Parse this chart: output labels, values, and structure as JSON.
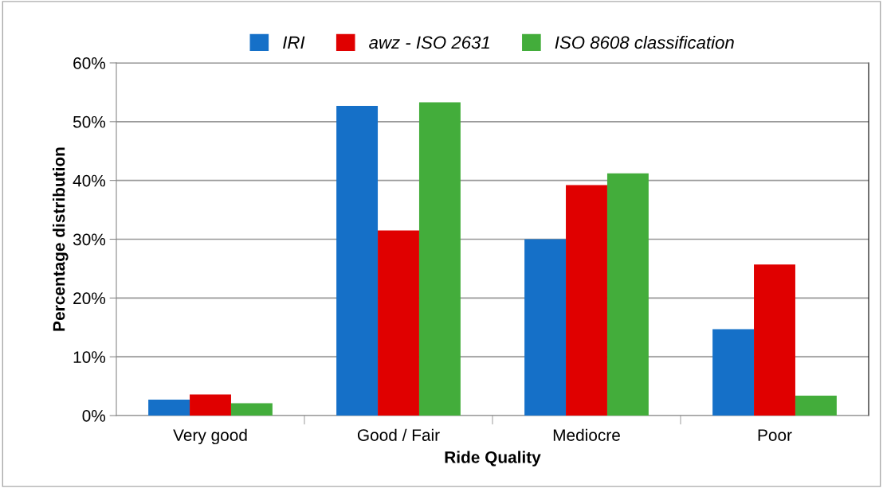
{
  "chart_data": {
    "type": "bar",
    "xlabel": "Ride Quality",
    "ylabel": "Percentage distribution",
    "categories": [
      "Very good",
      "Good / Fair",
      "Mediocre",
      "Poor"
    ],
    "series": [
      {
        "name": "IRI",
        "color": "#1570c8",
        "values": [
          2.7,
          52.7,
          30.0,
          14.7
        ]
      },
      {
        "name": "awz - ISO 2631",
        "color": "#e00000",
        "values": [
          3.6,
          31.5,
          39.2,
          25.7
        ]
      },
      {
        "name": "ISO 8608 classification",
        "color": "#43ad3b",
        "values": [
          2.1,
          53.3,
          41.2,
          3.4
        ]
      }
    ],
    "ylim": [
      0,
      60
    ],
    "yticks": [
      {
        "value": 0,
        "label": "0%"
      },
      {
        "value": 10,
        "label": "10%"
      },
      {
        "value": 20,
        "label": "20%"
      },
      {
        "value": 30,
        "label": "30%"
      },
      {
        "value": 40,
        "label": "40%"
      },
      {
        "value": 50,
        "label": "50%"
      },
      {
        "value": 60,
        "label": "60%"
      }
    ],
    "grid": "y",
    "legend": "top"
  }
}
